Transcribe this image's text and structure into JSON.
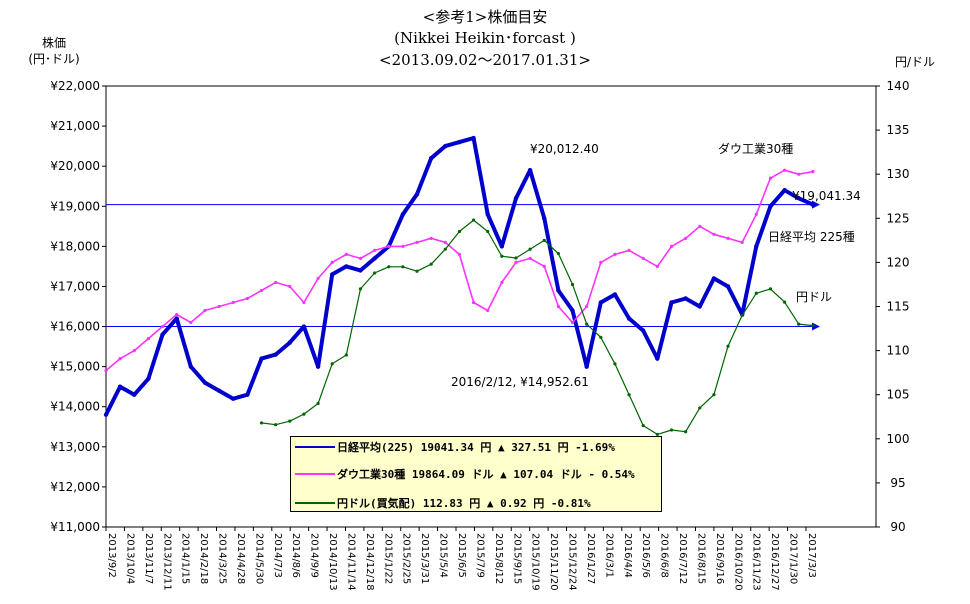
{
  "title": {
    "line1": "<参考1>株価目安",
    "line2": "(Nikkei Heikin･forcast )",
    "line3": "<2013.09.02～2017.01.31>"
  },
  "left_axis_title": {
    "line1": "株価",
    "line2": "(円･ドル)"
  },
  "right_axis_title": "円/ドル",
  "annotations": {
    "peak_label": "¥20,012.40",
    "low_label": "2016/2/12, ¥14,952.61",
    "dow_label": "ダウ工業30種",
    "nikkei_value_label": "¥19,041.34",
    "nikkei_label": "日経平均 225種",
    "yen_label": "円ドル"
  },
  "legend": {
    "nikkei": "日経平均(225) 19041.34 円 ▲ 327.51 円 -1.69%",
    "dow": "ダウ工業30種 19864.09 ドル ▲ 107.04 ドル - 0.54%",
    "yen": "円ドル(買気配) 112.83 円 ▲ 0.92 円 -0.81%"
  },
  "colors": {
    "nikkei": "#0000cc",
    "dow": "#ff33ff",
    "yen": "#006600",
    "reference": "#0000ff"
  },
  "chart_data": {
    "type": "line",
    "x_tick_labels": [
      "2013/9/2",
      "2013/10/4",
      "2013/11/7",
      "2013/12/11",
      "2014/1/15",
      "2014/2/18",
      "2014/3/25",
      "2014/4/28",
      "2014/5/30",
      "2014/7/3",
      "2014/8/6",
      "2014/9/9",
      "2014/10/13",
      "2014/11/14",
      "2014/12/18",
      "2015/1/22",
      "2015/2/25",
      "2015/3/31",
      "2015/5/4",
      "2015/6/5",
      "2015/7/9",
      "2015/8/12",
      "2015/9/15",
      "2015/10/19",
      "2015/11/20",
      "2015/12/24",
      "2016/1/27",
      "2016/3/1",
      "2016/4/4",
      "2016/5/6",
      "2016/6/8",
      "2016/7/12",
      "2016/8/15",
      "2016/9/16",
      "2016/10/20",
      "2016/11/23",
      "2016/12/27",
      "2017/1/30",
      "2017/3/3"
    ],
    "left_axis": {
      "label": "株価 (円･ドル)",
      "ylim": [
        11000,
        22000
      ],
      "ticks": [
        "¥11,000",
        "¥12,000",
        "¥13,000",
        "¥14,000",
        "¥15,000",
        "¥16,000",
        "¥17,000",
        "¥18,000",
        "¥19,000",
        "¥20,000",
        "¥21,000",
        "¥22,000"
      ]
    },
    "right_axis": {
      "label": "円/ドル",
      "ylim": [
        90,
        140
      ],
      "ticks": [
        "90",
        "95",
        "100",
        "105",
        "110",
        "115",
        "120",
        "125",
        "130",
        "135",
        "140"
      ]
    },
    "series": [
      {
        "name": "日経平均(225)",
        "axis": "left",
        "x": [
          0,
          0.02,
          0.04,
          0.06,
          0.08,
          0.1,
          0.12,
          0.14,
          0.16,
          0.18,
          0.2,
          0.22,
          0.24,
          0.26,
          0.28,
          0.3,
          0.32,
          0.34,
          0.36,
          0.38,
          0.4,
          0.42,
          0.44,
          0.46,
          0.48,
          0.5,
          0.52,
          0.54,
          0.56,
          0.58,
          0.6,
          0.62,
          0.64,
          0.66,
          0.68,
          0.7,
          0.72,
          0.74,
          0.76,
          0.78,
          0.8,
          0.82,
          0.84,
          0.86,
          0.88,
          0.9,
          0.92,
          0.94,
          0.96,
          0.98,
          1.0
        ],
        "y": [
          13800,
          14500,
          14300,
          14700,
          15800,
          16200,
          15000,
          14600,
          14400,
          14200,
          14300,
          15200,
          15300,
          15600,
          16000,
          15000,
          17300,
          17500,
          17400,
          17700,
          18000,
          18800,
          19300,
          20200,
          20500,
          20600,
          20700,
          18800,
          18000,
          19200,
          19900,
          18700,
          16900,
          16400,
          15000,
          16600,
          16800,
          16200,
          15900,
          15200,
          16600,
          16700,
          16500,
          17200,
          17000,
          16300,
          18000,
          19000,
          19400,
          19200,
          19041
        ]
      },
      {
        "name": "ダウ工業30種",
        "axis": "left",
        "x": [
          0,
          0.02,
          0.04,
          0.06,
          0.08,
          0.1,
          0.12,
          0.14,
          0.16,
          0.18,
          0.2,
          0.22,
          0.24,
          0.26,
          0.28,
          0.3,
          0.32,
          0.34,
          0.36,
          0.38,
          0.4,
          0.42,
          0.44,
          0.46,
          0.48,
          0.5,
          0.52,
          0.54,
          0.56,
          0.58,
          0.6,
          0.62,
          0.64,
          0.66,
          0.68,
          0.7,
          0.72,
          0.74,
          0.76,
          0.78,
          0.8,
          0.82,
          0.84,
          0.86,
          0.88,
          0.9,
          0.92,
          0.94,
          0.96,
          0.98,
          1.0
        ],
        "y": [
          14900,
          15200,
          15400,
          15700,
          16000,
          16300,
          16100,
          16400,
          16500,
          16600,
          16700,
          16900,
          17100,
          17000,
          16600,
          17200,
          17600,
          17800,
          17700,
          17900,
          18000,
          18000,
          18100,
          18200,
          18100,
          17800,
          16600,
          16400,
          17100,
          17600,
          17700,
          17500,
          16500,
          16100,
          16500,
          17600,
          17800,
          17900,
          17700,
          17500,
          18000,
          18200,
          18500,
          18300,
          18200,
          18100,
          18800,
          19700,
          19900,
          19800,
          19864
        ]
      },
      {
        "name": "円ドル(買気配)",
        "axis": "right",
        "x": [
          0.22,
          0.24,
          0.26,
          0.28,
          0.3,
          0.32,
          0.34,
          0.36,
          0.38,
          0.4,
          0.42,
          0.44,
          0.46,
          0.48,
          0.5,
          0.52,
          0.54,
          0.56,
          0.58,
          0.6,
          0.62,
          0.64,
          0.66,
          0.68,
          0.7,
          0.72,
          0.74,
          0.76,
          0.78,
          0.8,
          0.82,
          0.84,
          0.86,
          0.88,
          0.9,
          0.92,
          0.94,
          0.96,
          0.98,
          1.0
        ],
        "y": [
          101.8,
          101.6,
          102,
          102.8,
          104,
          108.5,
          109.5,
          117,
          118.8,
          119.5,
          119.5,
          119,
          119.8,
          121.5,
          123.5,
          124.8,
          123.5,
          120.7,
          120.5,
          121.5,
          122.5,
          121,
          117.5,
          113,
          111.5,
          108.5,
          105,
          101.5,
          100.5,
          101,
          100.8,
          103.5,
          105,
          110.5,
          114,
          116.5,
          117,
          115.5,
          113,
          112.83
        ]
      }
    ],
    "reference_lines": [
      {
        "axis": "left",
        "value": 19041.34
      },
      {
        "axis": "left",
        "value": 16000
      }
    ],
    "grid": false,
    "legend_position": "bottom-center"
  }
}
